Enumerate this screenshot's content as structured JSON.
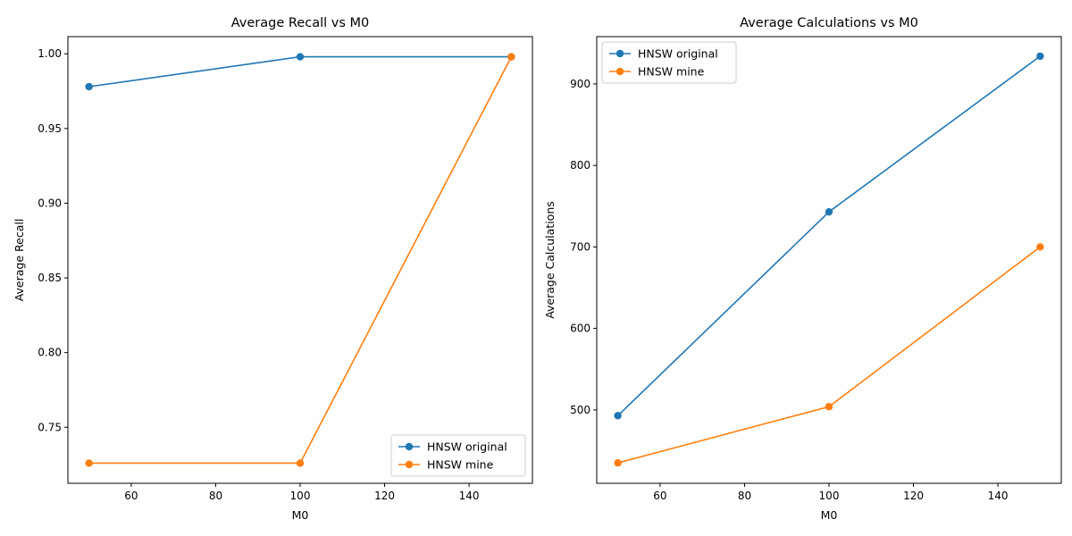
{
  "chart_data": [
    {
      "type": "line",
      "title": "Average Recall vs M0",
      "xlabel": "M0",
      "ylabel": "Average Recall",
      "xlim": [
        45,
        155
      ],
      "ylim": [
        0.7125,
        1.0115
      ],
      "xticks": [
        60,
        80,
        100,
        120,
        140
      ],
      "xtick_labels": [
        "60",
        "80",
        "100",
        "120",
        "140"
      ],
      "yticks": [
        0.75,
        0.8,
        0.85,
        0.9,
        0.95,
        1.0
      ],
      "ytick_labels": [
        "0.75",
        "0.80",
        "0.85",
        "0.90",
        "0.95",
        "1.00"
      ],
      "legend_loc": "lower-right",
      "grid": false,
      "x": [
        50,
        100,
        150
      ],
      "series": [
        {
          "name": "HNSW original",
          "color": "#1f77b4",
          "values": [
            0.978,
            0.998,
            0.998
          ]
        },
        {
          "name": "HNSW mine",
          "color": "#ff7f0e",
          "values": [
            0.726,
            0.726,
            0.998
          ]
        }
      ]
    },
    {
      "type": "line",
      "title": "Average Calculations vs M0",
      "xlabel": "M0",
      "ylabel": "Average Calculations",
      "xlim": [
        45,
        155
      ],
      "ylim": [
        410,
        958
      ],
      "xticks": [
        60,
        80,
        100,
        120,
        140
      ],
      "xtick_labels": [
        "60",
        "80",
        "100",
        "120",
        "140"
      ],
      "yticks": [
        500,
        600,
        700,
        800,
        900
      ],
      "ytick_labels": [
        "500",
        "600",
        "700",
        "800",
        "900"
      ],
      "legend_loc": "top-left",
      "grid": false,
      "x": [
        50,
        100,
        150
      ],
      "series": [
        {
          "name": "HNSW original",
          "color": "#1f77b4",
          "values": [
            493,
            743,
            934
          ]
        },
        {
          "name": "HNSW mine",
          "color": "#ff7f0e",
          "values": [
            435,
            504,
            700
          ]
        }
      ]
    }
  ]
}
